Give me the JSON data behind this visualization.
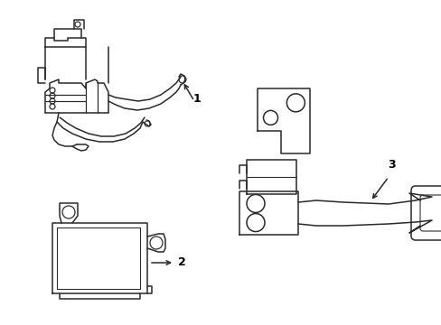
{
  "background_color": "#ffffff",
  "line_color": "#2a2a2a",
  "label_color": "#000000",
  "figsize": [
    4.89,
    3.6
  ],
  "dpi": 100,
  "xlim": [
    0,
    489
  ],
  "ylim": [
    0,
    360
  ]
}
